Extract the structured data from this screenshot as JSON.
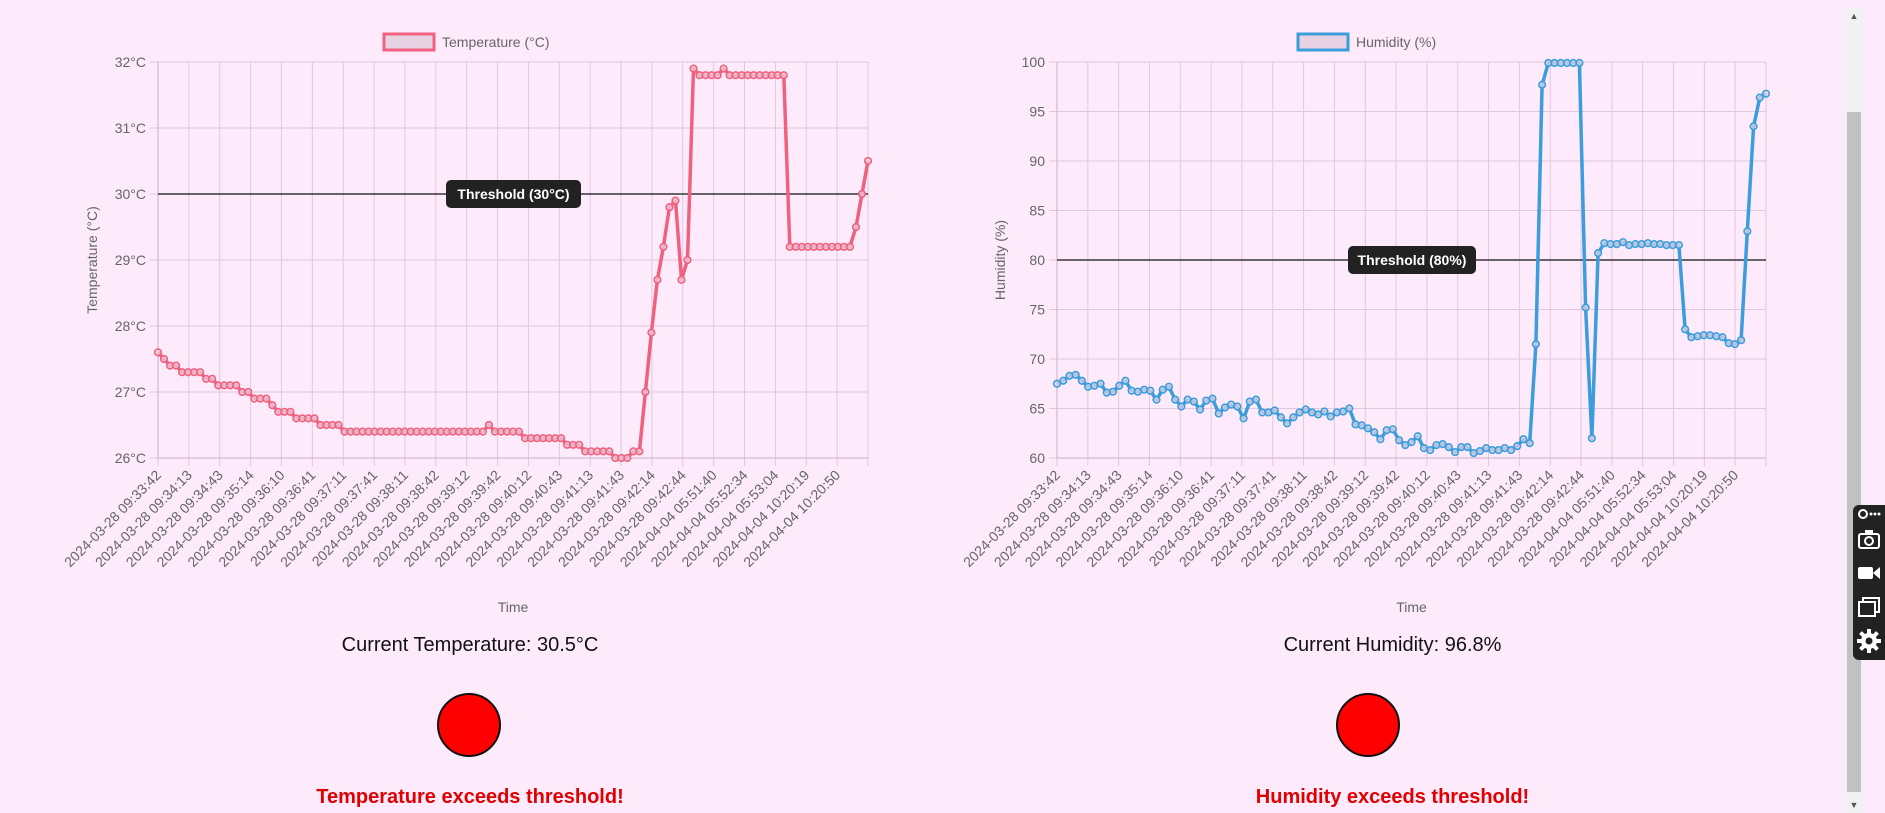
{
  "temperature": {
    "readout": "Current Temperature: 30.5°C",
    "alert": "Temperature exceeds threshold!",
    "status_color": "#ff0000",
    "threshold_label": "Threshold (30°C)"
  },
  "humidity": {
    "readout": "Current Humidity: 96.8%",
    "alert": "Humidity exceeds threshold!",
    "status_color": "#ff0000",
    "threshold_label": "Threshold (80%)"
  },
  "toolbar": {
    "icons": [
      "settings-gear-icon",
      "screenshot-icon",
      "video-icon",
      "window-icon",
      "gear-icon"
    ]
  },
  "chart_data": [
    {
      "type": "line",
      "legend": "Temperature (°C)",
      "xlabel": "Time",
      "ylabel": "Temperature (°C)",
      "ylim": [
        26,
        32
      ],
      "y_ticks": [
        "26°C",
        "27°C",
        "28°C",
        "29°C",
        "30°C",
        "31°C",
        "32°C"
      ],
      "x_tick_labels": [
        "2024-03-28 09:33:42",
        "2024-03-28 09:34:13",
        "2024-03-28 09:34:43",
        "2024-03-28 09:35:14",
        "2024-03-28 09:36:10",
        "2024-03-28 09:36:41",
        "2024-03-28 09:37:11",
        "2024-03-28 09:37:41",
        "2024-03-28 09:38:11",
        "2024-03-28 09:38:42",
        "2024-03-28 09:39:12",
        "2024-03-28 09:39:42",
        "2024-03-28 09:40:12",
        "2024-03-28 09:40:43",
        "2024-03-28 09:41:13",
        "2024-03-28 09:41:43",
        "2024-03-28 09:42:14",
        "2024-03-28 09:42:44",
        "2024-04-04 05:51:40",
        "2024-04-04 05:52:34",
        "2024-04-04 05:53:04",
        "2024-04-04 10:20:19",
        "2024-04-04 10:20:50"
      ],
      "threshold": 30,
      "threshold_label": "Threshold (30°C)",
      "color": "#f0617f",
      "grid": true,
      "values": [
        27.6,
        27.5,
        27.4,
        27.4,
        27.3,
        27.3,
        27.3,
        27.3,
        27.2,
        27.2,
        27.1,
        27.1,
        27.1,
        27.1,
        27.0,
        27.0,
        26.9,
        26.9,
        26.9,
        26.8,
        26.7,
        26.7,
        26.7,
        26.6,
        26.6,
        26.6,
        26.6,
        26.5,
        26.5,
        26.5,
        26.5,
        26.4,
        26.4,
        26.4,
        26.4,
        26.4,
        26.4,
        26.4,
        26.4,
        26.4,
        26.4,
        26.4,
        26.4,
        26.4,
        26.4,
        26.4,
        26.4,
        26.4,
        26.4,
        26.4,
        26.4,
        26.4,
        26.4,
        26.4,
        26.4,
        26.5,
        26.4,
        26.4,
        26.4,
        26.4,
        26.4,
        26.3,
        26.3,
        26.3,
        26.3,
        26.3,
        26.3,
        26.3,
        26.2,
        26.2,
        26.2,
        26.1,
        26.1,
        26.1,
        26.1,
        26.1,
        26.0,
        26.0,
        26.0,
        26.1,
        26.1,
        27.0,
        27.9,
        28.7,
        29.2,
        29.8,
        29.9,
        28.7,
        29.0,
        31.9,
        31.8,
        31.8,
        31.8,
        31.8,
        31.9,
        31.8,
        31.8,
        31.8,
        31.8,
        31.8,
        31.8,
        31.8,
        31.8,
        31.8,
        31.8,
        29.2,
        29.2,
        29.2,
        29.2,
        29.2,
        29.2,
        29.2,
        29.2,
        29.2,
        29.2,
        29.2,
        29.5,
        30.0,
        30.5
      ]
    },
    {
      "type": "line",
      "legend": "Humidity (%)",
      "xlabel": "Time",
      "ylabel": "Humidity (%)",
      "ylim": [
        60,
        100
      ],
      "y_ticks": [
        "60",
        "65",
        "70",
        "75",
        "80",
        "85",
        "90",
        "95",
        "100"
      ],
      "x_tick_labels": [
        "2024-03-28 09:33:42",
        "2024-03-28 09:34:13",
        "2024-03-28 09:34:43",
        "2024-03-28 09:35:14",
        "2024-03-28 09:36:10",
        "2024-03-28 09:36:41",
        "2024-03-28 09:37:11",
        "2024-03-28 09:37:41",
        "2024-03-28 09:38:11",
        "2024-03-28 09:38:42",
        "2024-03-28 09:39:12",
        "2024-03-28 09:39:42",
        "2024-03-28 09:40:12",
        "2024-03-28 09:40:43",
        "2024-03-28 09:41:13",
        "2024-03-28 09:41:43",
        "2024-03-28 09:42:14",
        "2024-03-28 09:42:44",
        "2024-04-04 05:51:40",
        "2024-04-04 05:52:34",
        "2024-04-04 05:53:04",
        "2024-04-04 10:20:19",
        "2024-04-04 10:20:50"
      ],
      "threshold": 80,
      "threshold_label": "Threshold (80%)",
      "color": "#3b9ddb",
      "grid": true,
      "values": [
        67.5,
        67.8,
        68.3,
        68.4,
        67.8,
        67.2,
        67.3,
        67.5,
        66.6,
        66.7,
        67.3,
        67.8,
        66.8,
        66.7,
        66.9,
        66.8,
        65.9,
        66.9,
        67.2,
        65.9,
        65.2,
        65.9,
        65.7,
        64.9,
        65.8,
        66.0,
        64.5,
        65.1,
        65.4,
        65.2,
        64.0,
        65.7,
        65.9,
        64.6,
        64.6,
        64.8,
        64.1,
        63.5,
        64.1,
        64.6,
        64.9,
        64.6,
        64.4,
        64.7,
        64.2,
        64.6,
        64.7,
        65.0,
        63.4,
        63.3,
        63.0,
        62.6,
        61.9,
        62.8,
        62.9,
        61.8,
        61.3,
        61.6,
        62.2,
        61.0,
        60.8,
        61.3,
        61.4,
        61.1,
        60.6,
        61.1,
        61.1,
        60.5,
        60.7,
        61.0,
        60.8,
        60.8,
        61.0,
        60.8,
        61.2,
        61.9,
        61.5,
        71.5,
        97.7,
        99.9,
        99.9,
        99.9,
        99.9,
        99.9,
        99.9,
        75.2,
        62.0,
        80.7,
        81.7,
        81.6,
        81.6,
        81.8,
        81.5,
        81.6,
        81.6,
        81.7,
        81.6,
        81.6,
        81.5,
        81.5,
        81.5,
        73.0,
        72.2,
        72.3,
        72.4,
        72.4,
        72.3,
        72.2,
        71.6,
        71.5,
        71.9,
        82.9,
        93.5,
        96.4,
        96.8
      ]
    }
  ]
}
